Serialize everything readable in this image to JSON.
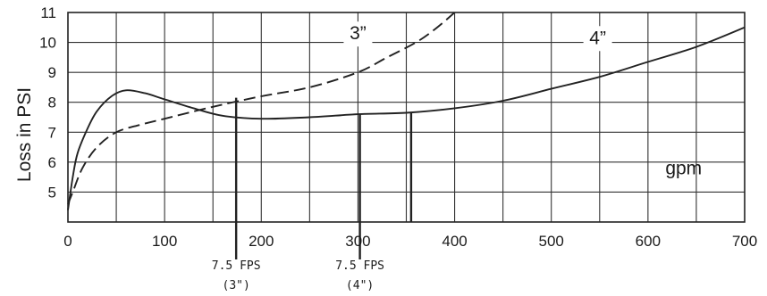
{
  "chart_data": {
    "type": "line",
    "title": "",
    "xlabel": "",
    "ylabel": "Loss in PSI",
    "xlim": [
      0,
      700
    ],
    "ylim": [
      4,
      11
    ],
    "grid": true,
    "x_ticks": [
      "0",
      "100",
      "200",
      "300",
      "400",
      "500",
      "600",
      "700"
    ],
    "y_ticks": [
      "5",
      "6",
      "7",
      "8",
      "9",
      "10",
      "11"
    ],
    "series": [
      {
        "name": "3”",
        "style": "dashed",
        "x": [
          0,
          5,
          15,
          30,
          50,
          75,
          100,
          150,
          200,
          250,
          300,
          330,
          360,
          380,
          400
        ],
        "y": [
          4.6,
          5.0,
          5.8,
          6.5,
          7.0,
          7.25,
          7.45,
          7.85,
          8.2,
          8.5,
          9.0,
          9.5,
          10.0,
          10.45,
          11.0
        ]
      },
      {
        "name": "4”",
        "style": "solid",
        "x": [
          0,
          5,
          10,
          20,
          30,
          45,
          60,
          80,
          100,
          130,
          160,
          200,
          250,
          300,
          350,
          400,
          450,
          500,
          550,
          600,
          650,
          700
        ],
        "y": [
          4.4,
          5.5,
          6.3,
          7.1,
          7.7,
          8.2,
          8.4,
          8.3,
          8.1,
          7.8,
          7.55,
          7.45,
          7.5,
          7.6,
          7.65,
          7.8,
          8.05,
          8.45,
          8.85,
          9.35,
          9.85,
          10.5
        ]
      }
    ],
    "series_labels": [
      {
        "text": "3”",
        "x": 300,
        "y": 10.1
      },
      {
        "text": "4”",
        "x": 548,
        "y": 9.95
      }
    ],
    "annotations": [
      {
        "text": "gpm",
        "x": 618,
        "y": 5.6
      },
      {
        "text": "7.5 FPS",
        "subtext": "(3\")",
        "x": 174
      },
      {
        "text": "7.5 FPS",
        "subtext": "(4\")",
        "x": 302
      }
    ],
    "markers": [
      {
        "x": 174,
        "y": 8.15
      },
      {
        "x": 302,
        "y": 7.6
      },
      {
        "x": 355,
        "y": 7.65
      }
    ]
  }
}
